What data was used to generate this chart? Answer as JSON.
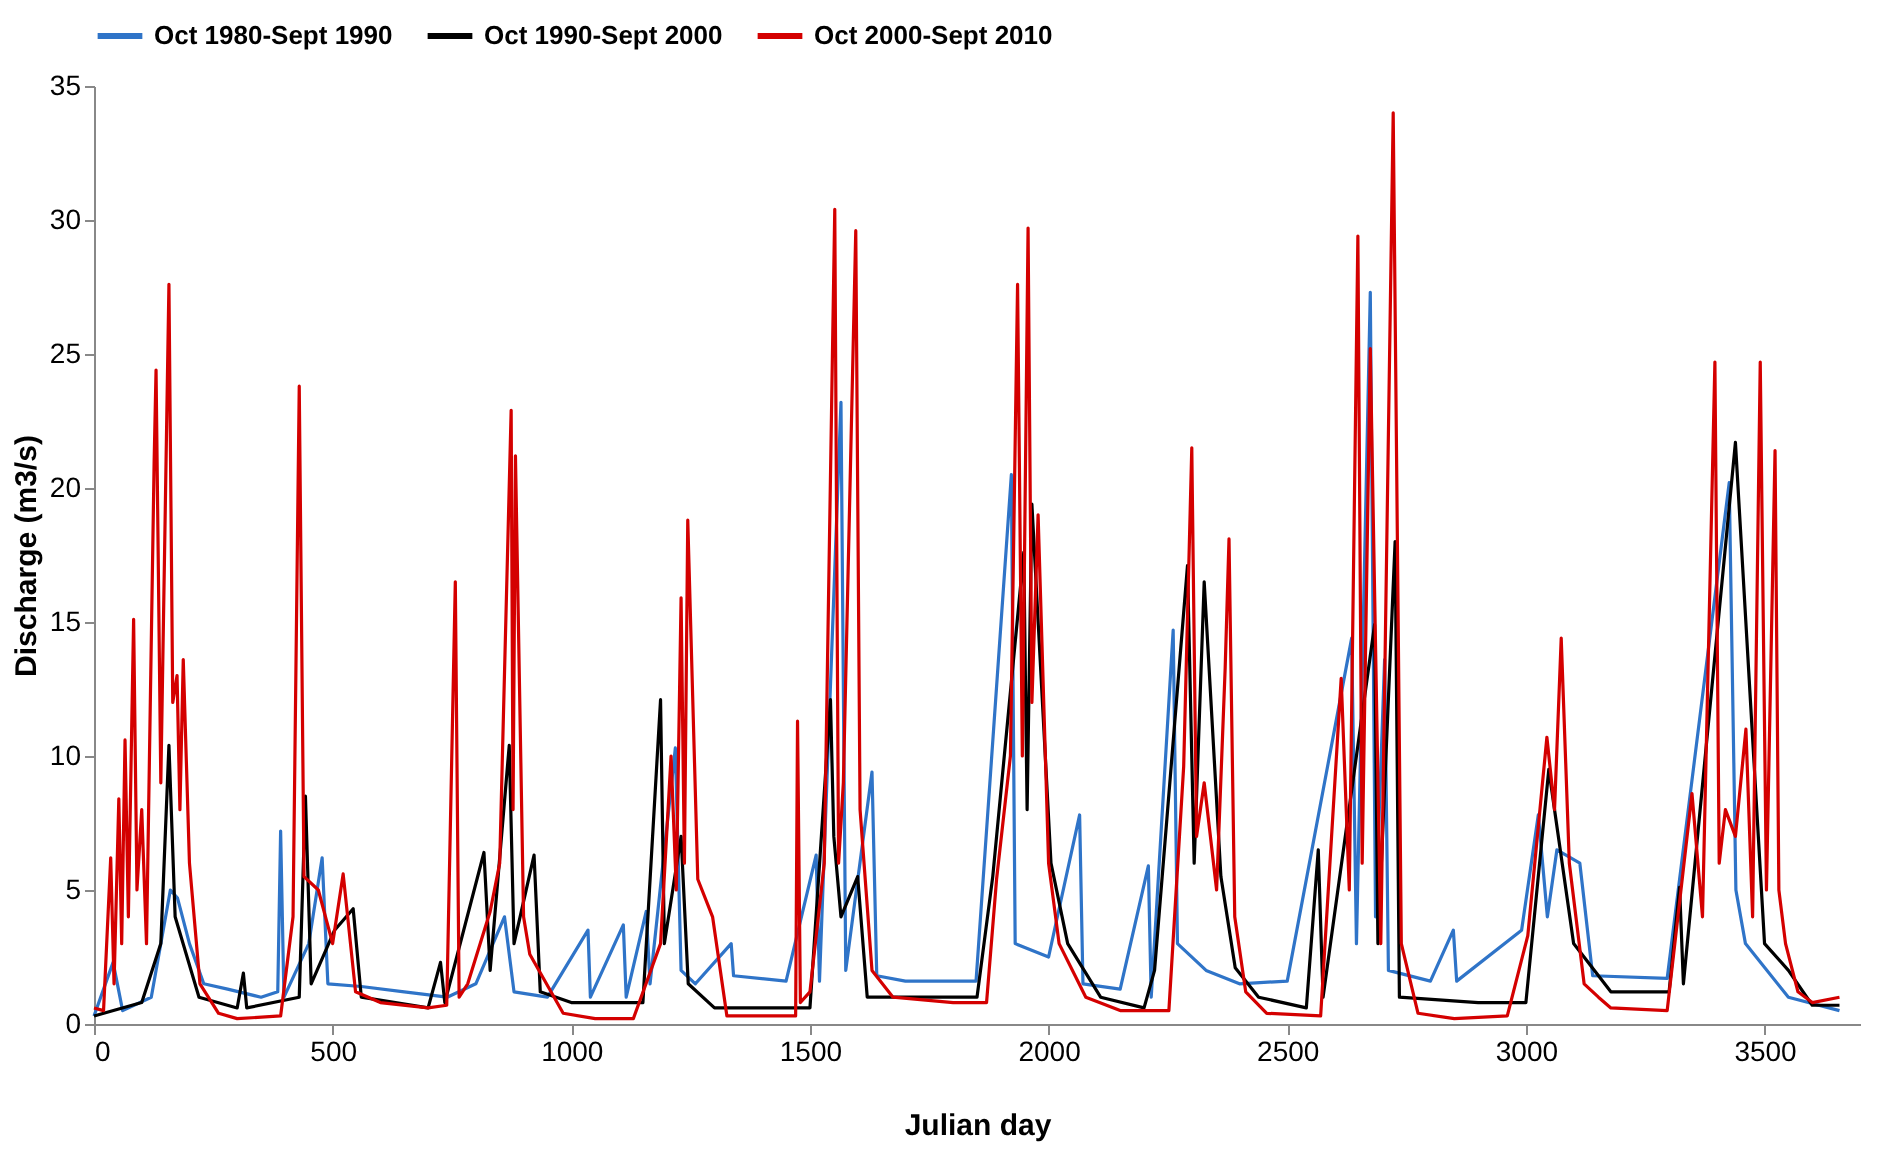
{
  "chart_data": {
    "type": "line",
    "xlabel": "Julian day",
    "ylabel": "Discharge (m3/s)",
    "xlim": [
      0,
      3700
    ],
    "ylim": [
      0,
      35
    ],
    "xticks": [
      0,
      500,
      1000,
      1500,
      2000,
      2500,
      3000,
      3500
    ],
    "yticks": [
      0,
      5,
      10,
      15,
      20,
      25,
      30,
      35
    ],
    "grid": false,
    "legend": "top",
    "marker": "none",
    "line_style": "solid",
    "series": [
      {
        "name": "Oct 1980-Sept 1990",
        "color": "#2f74c8",
        "x": [
          0,
          40,
          60,
          120,
          160,
          175,
          200,
          230,
          280,
          350,
          385,
          391,
          398,
          450,
          478,
          490,
          560,
          650,
          740,
          800,
          860,
          880,
          950,
          1035,
          1040,
          1109,
          1115,
          1157,
          1165,
          1218,
          1230,
          1260,
          1335,
          1340,
          1450,
          1513,
          1520,
          1565,
          1575,
          1630,
          1640,
          1700,
          1848,
          1922,
          1930,
          2000,
          2065,
          2072,
          2150,
          2209,
          2215,
          2261,
          2270,
          2330,
          2400,
          2500,
          2635,
          2645,
          2674,
          2685,
          2704,
          2712,
          2800,
          2848,
          2855,
          2991,
          3026,
          3045,
          3065,
          3113,
          3140,
          3296,
          3426,
          3440,
          3460,
          3550,
          3657
        ],
        "values": [
          0.3,
          2.3,
          0.5,
          1,
          5,
          4.7,
          3,
          1.5,
          1.3,
          1,
          1.2,
          7.2,
          1,
          3,
          6.2,
          1.5,
          1.4,
          1.2,
          1,
          1.5,
          4,
          1.2,
          1,
          3.5,
          1,
          3.7,
          1,
          4.2,
          1.5,
          10.3,
          2,
          1.5,
          3,
          1.8,
          1.6,
          6.3,
          1.6,
          23.2,
          2,
          9.4,
          1.8,
          1.6,
          1.6,
          20.5,
          3,
          2.5,
          7.8,
          1.5,
          1.3,
          5.9,
          1,
          14.7,
          3,
          2,
          1.5,
          1.6,
          14.4,
          3,
          27.3,
          4,
          13.6,
          2,
          1.6,
          3.5,
          1.6,
          3.5,
          7.8,
          4,
          6.5,
          6,
          1.8,
          1.7,
          20.2,
          5,
          3,
          1,
          0.5
        ]
      },
      {
        "name": "Oct 1990-Sept 2000",
        "color": "#000000",
        "x": [
          0,
          100,
          140,
          157,
          170,
          220,
          300,
          313,
          320,
          430,
          443,
          455,
          504,
          543,
          560,
          700,
          726,
          735,
          817,
          830,
          870,
          880,
          922,
          935,
          1000,
          1150,
          1187,
          1195,
          1230,
          1245,
          1300,
          1500,
          1543,
          1550,
          1565,
          1600,
          1620,
          1850,
          1883,
          1948,
          1955,
          1965,
          2005,
          2040,
          2109,
          2200,
          2222,
          2291,
          2305,
          2326,
          2361,
          2391,
          2440,
          2540,
          2565,
          2575,
          2683,
          2690,
          2726,
          2735,
          2900,
          3000,
          3048,
          3100,
          3178,
          3300,
          3322,
          3330,
          3439,
          3500,
          3550,
          3600,
          3657
        ],
        "values": [
          0.3,
          0.8,
          3,
          10.4,
          4,
          1,
          0.6,
          1.9,
          0.6,
          1,
          8.5,
          1.5,
          3.5,
          4.3,
          1,
          0.6,
          2.3,
          0.8,
          6.4,
          2,
          10.4,
          3,
          6.3,
          1.2,
          0.8,
          0.8,
          12.1,
          3,
          7,
          1.5,
          0.6,
          0.6,
          12.1,
          7,
          4,
          5.5,
          1,
          1,
          5.5,
          17.6,
          8,
          19.4,
          6,
          3,
          1,
          0.6,
          2,
          17.1,
          6,
          16.5,
          5.5,
          2.1,
          1,
          0.6,
          6.5,
          1,
          14.9,
          3,
          18,
          1,
          0.8,
          0.8,
          9.5,
          3,
          1.2,
          1.2,
          5.1,
          1.5,
          21.7,
          3,
          2,
          0.7,
          0.7
        ]
      },
      {
        "name": "Oct 2000-Sept 2010",
        "color": "#d40000",
        "x": [
          0,
          20,
          35,
          42,
          52,
          58,
          65,
          72,
          83,
          90,
          100,
          110,
          126,
          130,
          140,
          157,
          165,
          174,
          180,
          187,
          200,
          222,
          261,
          300,
          391,
          417,
          430,
          440,
          470,
          500,
          522,
          548,
          600,
          700,
          739,
          757,
          765,
          783,
          830,
          850,
          874,
          878,
          883,
          900,
          913,
          983,
          1050,
          1130,
          1187,
          1209,
          1220,
          1230,
          1237,
          1244,
          1265,
          1296,
          1326,
          1400,
          1470,
          1474,
          1480,
          1500,
          1530,
          1552,
          1560,
          1570,
          1596,
          1605,
          1630,
          1674,
          1800,
          1870,
          1891,
          1920,
          1935,
          1945,
          1957,
          1965,
          1978,
          2000,
          2022,
          2078,
          2150,
          2252,
          2283,
          2300,
          2310,
          2326,
          2352,
          2370,
          2378,
          2390,
          2413,
          2457,
          2570,
          2613,
          2630,
          2648,
          2657,
          2674,
          2696,
          2722,
          2739,
          2774,
          2850,
          2961,
          3004,
          3044,
          3060,
          3074,
          3091,
          3122,
          3152,
          3178,
          3296,
          3348,
          3370,
          3396,
          3405,
          3418,
          3439,
          3461,
          3475,
          3491,
          3504,
          3522,
          3530,
          3544,
          3570,
          3600,
          3657
        ],
        "values": [
          0.6,
          0.5,
          6.2,
          1.5,
          8.4,
          3,
          10.6,
          4,
          15.1,
          5,
          8,
          3,
          21,
          24.4,
          9,
          27.6,
          12,
          13,
          8,
          13.6,
          6,
          1.5,
          0.4,
          0.2,
          0.3,
          4,
          23.8,
          5.5,
          5,
          3,
          5.6,
          1.2,
          0.8,
          0.6,
          0.7,
          16.5,
          1,
          1.5,
          4.2,
          6,
          22.9,
          8,
          21.2,
          4,
          2.6,
          0.4,
          0.2,
          0.2,
          3,
          10,
          5,
          15.9,
          6,
          18.8,
          5.4,
          4,
          0.3,
          0.3,
          0.3,
          11.3,
          0.8,
          1.2,
          6,
          30.4,
          6,
          9,
          29.6,
          8,
          2,
          1,
          0.8,
          0.8,
          5.4,
          10,
          27.6,
          10,
          29.7,
          12,
          19,
          6,
          3,
          1,
          0.5,
          0.5,
          9.6,
          21.5,
          7,
          9,
          5,
          13.3,
          18.1,
          4,
          1.2,
          0.4,
          0.3,
          12.9,
          5,
          29.4,
          6,
          25.2,
          3,
          34,
          3,
          0.4,
          0.2,
          0.3,
          3.3,
          10.7,
          8,
          14.4,
          6,
          1.5,
          1,
          0.6,
          0.5,
          8.6,
          4,
          24.7,
          6,
          8,
          7,
          11,
          4,
          24.7,
          5,
          21.4,
          5,
          3,
          1.2,
          0.8,
          1
        ]
      }
    ]
  }
}
